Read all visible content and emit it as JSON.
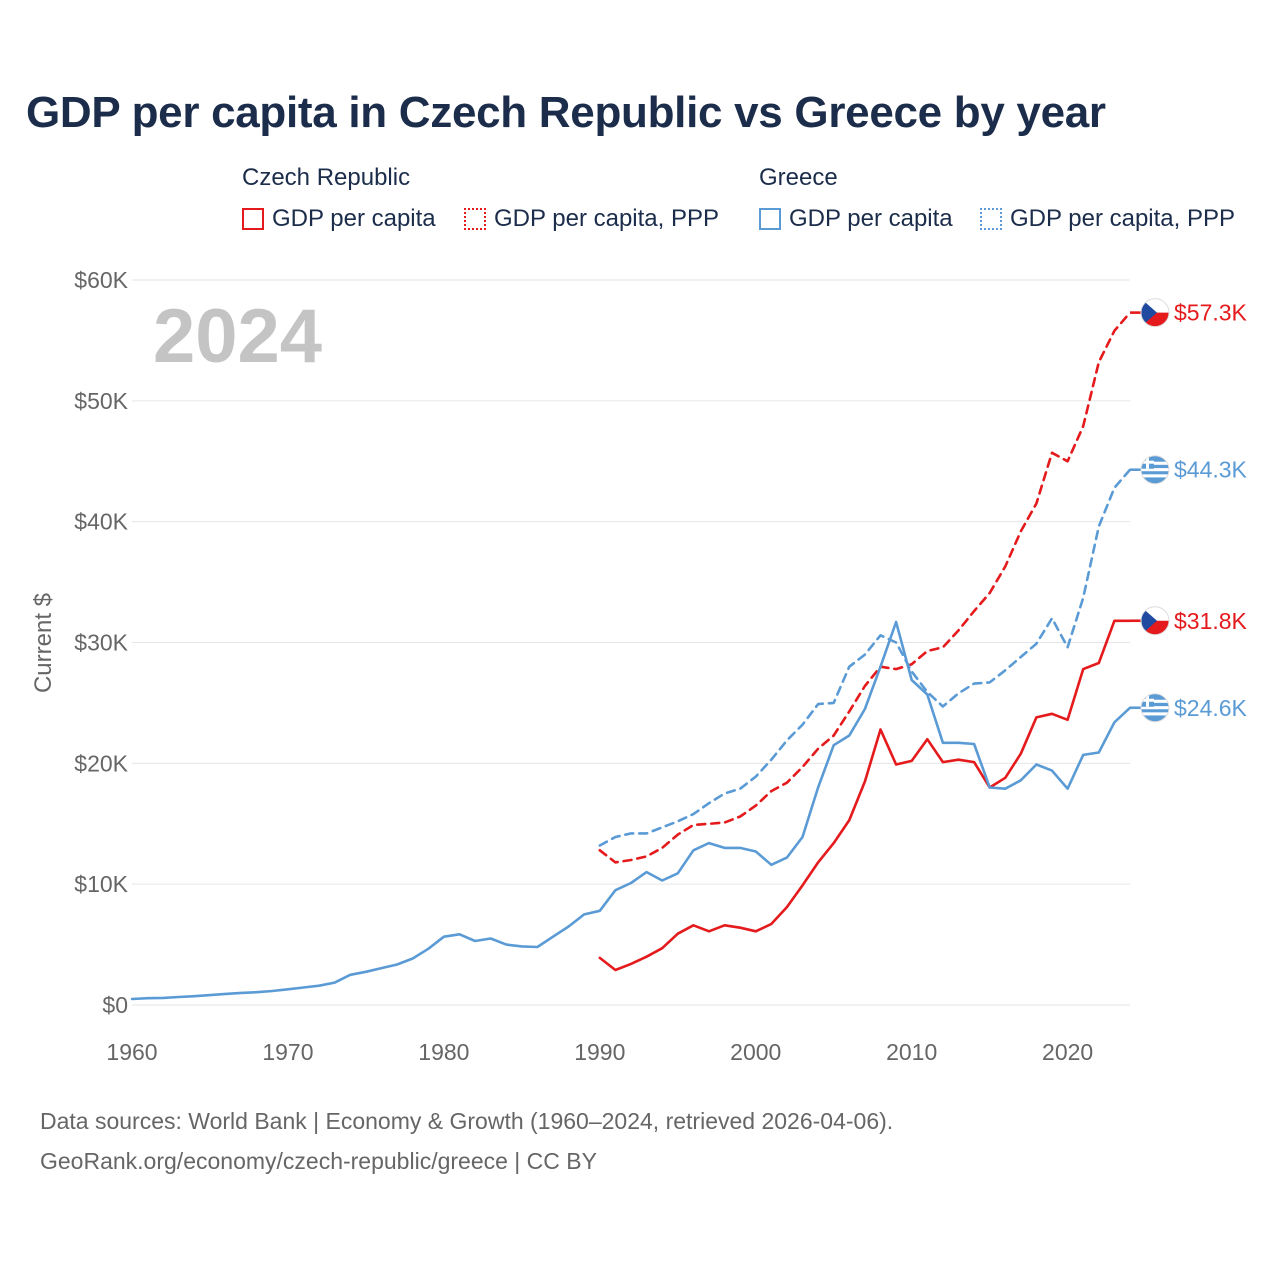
{
  "colors": {
    "czech": "#e41a1c",
    "greece": "#5b9bd5",
    "title": "#1b2d4b",
    "axis_text": "#666666",
    "grid": "#e6e6e6",
    "watermark": "#c4c4c4"
  },
  "chart_data": {
    "type": "line",
    "title": "GDP per capita in Czech Republic vs Greece by year",
    "ylabel": "Current $",
    "xlabel": "",
    "xlim": [
      1960,
      2024
    ],
    "ylim": [
      0,
      60000
    ],
    "x_ticks": [
      1960,
      1970,
      1980,
      1990,
      2000,
      2010,
      2020
    ],
    "x_tick_labels": [
      "1960",
      "1970",
      "1980",
      "1990",
      "2000",
      "2010",
      "2020"
    ],
    "y_ticks": [
      0,
      10000,
      20000,
      30000,
      40000,
      50000,
      60000
    ],
    "y_tick_labels": [
      "$0",
      "$10K",
      "$20K",
      "$30K",
      "$40K",
      "$50K",
      "$60K"
    ],
    "watermark_year": "2024",
    "legend": {
      "groups": [
        {
          "name": "Czech Republic",
          "items": [
            "GDP per capita",
            "GDP per capita, PPP"
          ]
        },
        {
          "name": "Greece",
          "items": [
            "GDP per capita",
            "GDP per capita, PPP"
          ]
        }
      ]
    },
    "series": [
      {
        "name": "Czech Republic GDP per capita",
        "country": "czech",
        "style": "solid",
        "end_label": "$31.8K",
        "x": [
          1990,
          1991,
          1992,
          1993,
          1994,
          1995,
          1996,
          1997,
          1998,
          1999,
          2000,
          2001,
          2002,
          2003,
          2004,
          2005,
          2006,
          2007,
          2008,
          2009,
          2010,
          2011,
          2012,
          2013,
          2014,
          2015,
          2016,
          2017,
          2018,
          2019,
          2020,
          2021,
          2022,
          2023,
          2024
        ],
        "values": [
          3900,
          2900,
          3400,
          4000,
          4700,
          5900,
          6600,
          6100,
          6600,
          6400,
          6100,
          6700,
          8100,
          9900,
          11800,
          13400,
          15300,
          18500,
          22800,
          19900,
          20200,
          22000,
          20100,
          20300,
          20100,
          18000,
          18800,
          20800,
          23800,
          24100,
          23600,
          27800,
          28300,
          31800,
          31800
        ]
      },
      {
        "name": "Czech Republic GDP per capita, PPP",
        "country": "czech",
        "style": "dashed",
        "end_label": "$57.3K",
        "x": [
          1990,
          1991,
          1992,
          1993,
          1994,
          1995,
          1996,
          1997,
          1998,
          1999,
          2000,
          2001,
          2002,
          2003,
          2004,
          2005,
          2006,
          2007,
          2008,
          2009,
          2010,
          2011,
          2012,
          2013,
          2014,
          2015,
          2016,
          2017,
          2018,
          2019,
          2020,
          2021,
          2022,
          2023,
          2024
        ],
        "values": [
          12800,
          11800,
          12000,
          12300,
          13000,
          14100,
          14900,
          15000,
          15100,
          15600,
          16500,
          17700,
          18400,
          19700,
          21200,
          22300,
          24300,
          26400,
          28000,
          27800,
          28200,
          29300,
          29600,
          31000,
          32600,
          34100,
          36300,
          39200,
          41500,
          45700,
          45000,
          47900,
          53200,
          55800,
          57300
        ]
      },
      {
        "name": "Greece GDP per capita",
        "country": "greece",
        "style": "solid",
        "end_label": "$24.6K",
        "x": [
          1960,
          1961,
          1962,
          1963,
          1964,
          1965,
          1966,
          1967,
          1968,
          1969,
          1970,
          1971,
          1972,
          1973,
          1974,
          1975,
          1976,
          1977,
          1978,
          1979,
          1980,
          1981,
          1982,
          1983,
          1984,
          1985,
          1986,
          1987,
          1988,
          1989,
          1990,
          1991,
          1992,
          1993,
          1994,
          1995,
          1996,
          1997,
          1998,
          1999,
          2000,
          2001,
          2002,
          2003,
          2004,
          2005,
          2006,
          2007,
          2008,
          2009,
          2010,
          2011,
          2012,
          2013,
          2014,
          2015,
          2016,
          2017,
          2018,
          2019,
          2020,
          2021,
          2022,
          2023,
          2024
        ],
        "values": [
          500,
          560,
          590,
          660,
          730,
          820,
          920,
          1000,
          1060,
          1160,
          1300,
          1450,
          1600,
          1850,
          2500,
          2750,
          3050,
          3350,
          3850,
          4650,
          5650,
          5850,
          5300,
          5500,
          5000,
          4850,
          4800,
          5650,
          6500,
          7500,
          7800,
          9500,
          10100,
          11000,
          10300,
          10900,
          12800,
          13400,
          13000,
          13000,
          12700,
          11600,
          12200,
          13900,
          18000,
          21500,
          22300,
          24500,
          28000,
          31700,
          26900,
          25700,
          21700,
          21700,
          21600,
          18000,
          17900,
          18600,
          19900,
          19400,
          17900,
          20700,
          20900,
          23400,
          24600
        ]
      },
      {
        "name": "Greece GDP per capita, PPP",
        "country": "greece",
        "style": "dashed",
        "end_label": "$44.3K",
        "x": [
          1990,
          1991,
          1992,
          1993,
          1994,
          1995,
          1996,
          1997,
          1998,
          1999,
          2000,
          2001,
          2002,
          2003,
          2004,
          2005,
          2006,
          2007,
          2008,
          2009,
          2010,
          2011,
          2012,
          2013,
          2014,
          2015,
          2016,
          2017,
          2018,
          2019,
          2020,
          2021,
          2022,
          2023,
          2024
        ],
        "values": [
          13200,
          13900,
          14200,
          14200,
          14700,
          15200,
          15800,
          16700,
          17500,
          17900,
          18900,
          20300,
          21900,
          23200,
          24900,
          25000,
          28000,
          29000,
          30600,
          30000,
          27600,
          25900,
          24700,
          25800,
          26600,
          26700,
          27700,
          28800,
          29900,
          32000,
          29600,
          33700,
          39600,
          42800,
          44300
        ]
      }
    ]
  },
  "source": {
    "line1": "Data sources: World Bank | Economy & Growth (1960–2024, retrieved 2026-04-06).",
    "line2": "GeoRank.org/economy/czech-republic/greece | CC BY"
  }
}
